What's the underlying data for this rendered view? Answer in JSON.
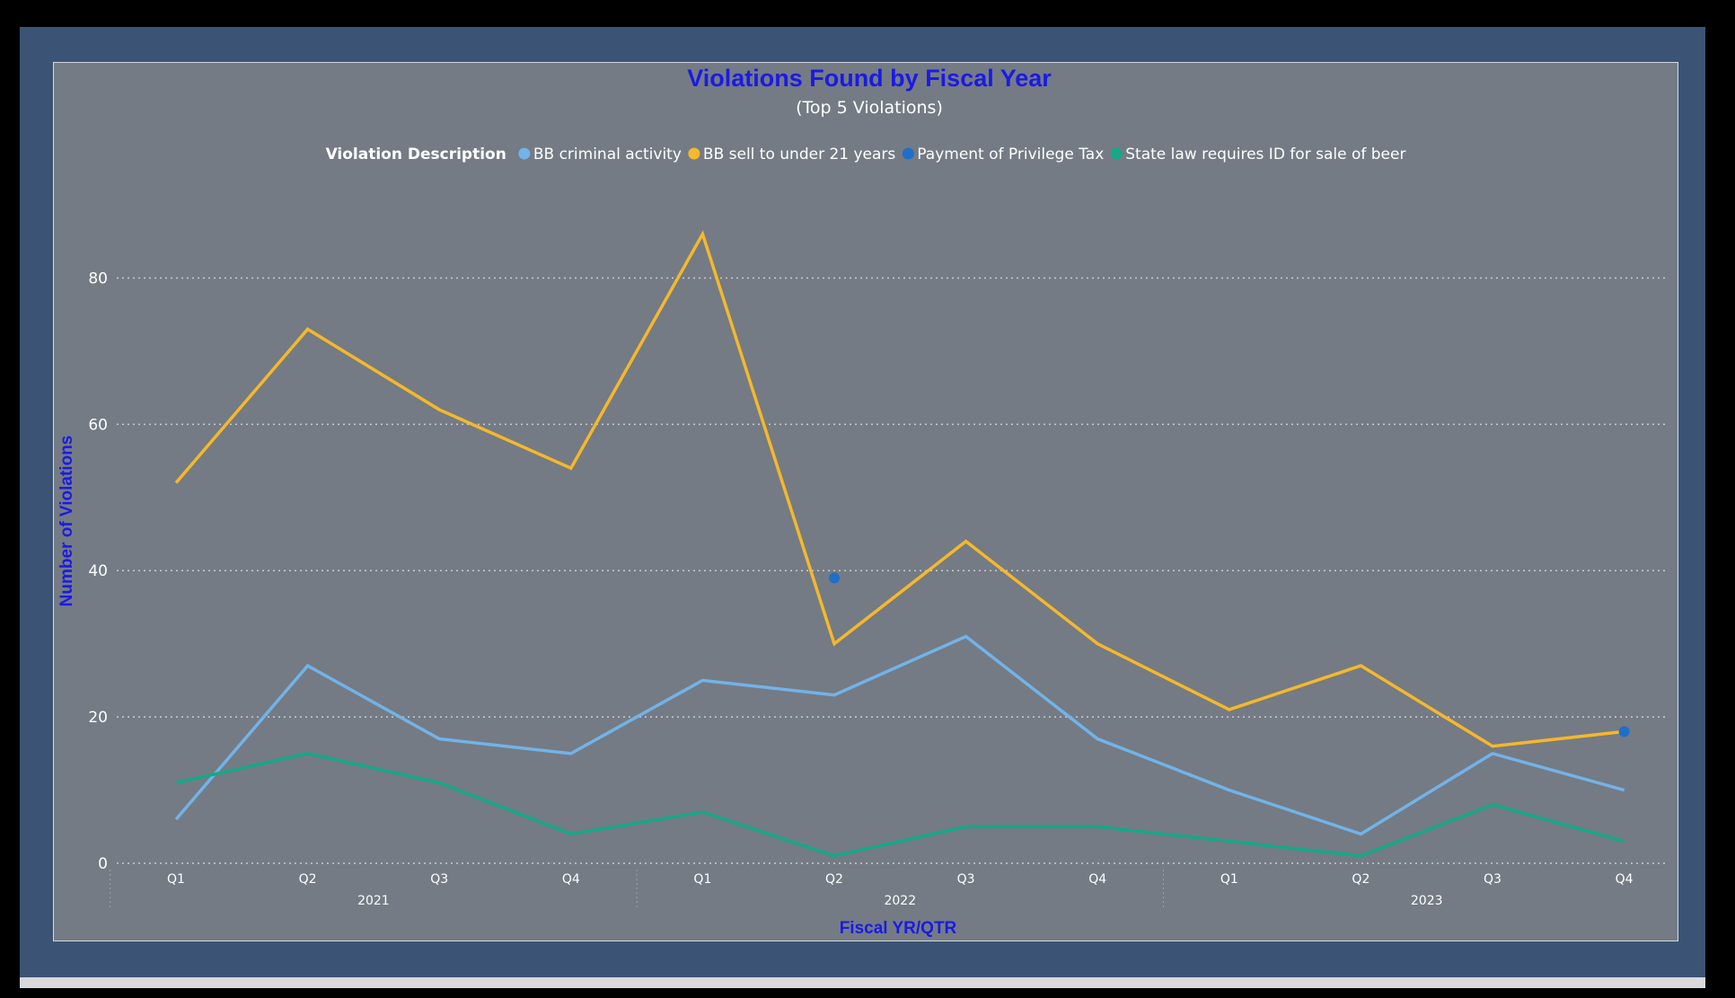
{
  "colors": {
    "background": "#747b84",
    "frame": "#3b5475",
    "title": "#1a1ae6",
    "axis_title": "#1a1ae6",
    "text": "#ffffff",
    "grid": "#c8ccd2"
  },
  "chart_data": {
    "type": "line",
    "title": "Violations Found by Fiscal Year",
    "subtitle": "(Top 5 Violations)",
    "legend_title": "Violation Description",
    "legend_position": "top",
    "xlabel": "Fiscal YR/QTR",
    "ylabel": "Number of Violations",
    "ylim": [
      0,
      90
    ],
    "y_ticks": [
      0,
      20,
      40,
      60,
      80
    ],
    "grid": true,
    "categories": [
      "2021 Q1",
      "2021 Q2",
      "2021 Q3",
      "2021 Q4",
      "2022 Q1",
      "2022 Q2",
      "2022 Q3",
      "2022 Q4",
      "2023 Q1",
      "2023 Q2",
      "2023 Q3",
      "2023 Q4"
    ],
    "quarter_labels": [
      "Q1",
      "Q2",
      "Q3",
      "Q4",
      "Q1",
      "Q2",
      "Q3",
      "Q4",
      "Q1",
      "Q2",
      "Q3",
      "Q4"
    ],
    "year_labels": [
      "2021",
      "2022",
      "2023"
    ],
    "series": [
      {
        "name": "BB criminal activity",
        "color": "#72b3e8",
        "style": "line",
        "values": [
          6,
          27,
          17,
          15,
          25,
          23,
          31,
          17,
          10,
          4,
          15,
          10
        ]
      },
      {
        "name": "BB sell to under 21 years",
        "color": "#f5b82b",
        "style": "line",
        "values": [
          52,
          73,
          62,
          54,
          86,
          30,
          44,
          30,
          21,
          27,
          16,
          18
        ]
      },
      {
        "name": "Payment of Privilege Tax",
        "color": "#1f6fc9",
        "style": "points",
        "values": [
          null,
          null,
          null,
          null,
          null,
          39,
          null,
          null,
          null,
          null,
          null,
          18
        ]
      },
      {
        "name": "State law requires ID for sale of beer",
        "color": "#15a889",
        "style": "line",
        "values": [
          11,
          15,
          11,
          4,
          7,
          1,
          5,
          5,
          3,
          1,
          8,
          3
        ]
      }
    ]
  }
}
